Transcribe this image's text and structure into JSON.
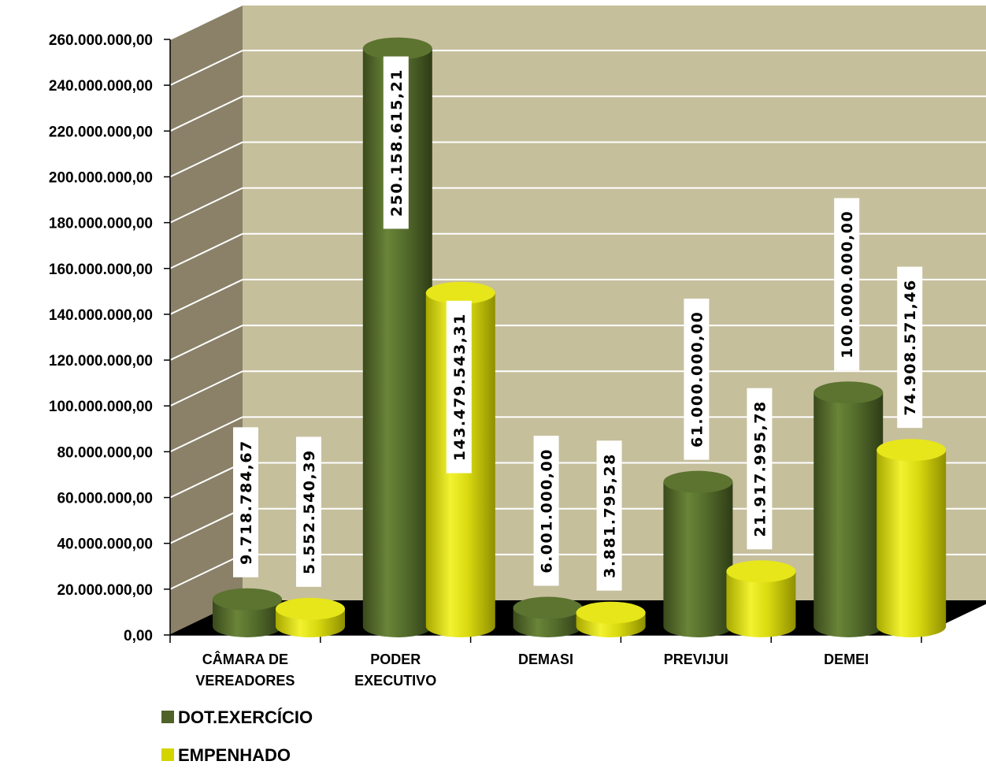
{
  "chart_data": {
    "type": "bar",
    "categories": [
      [
        "CÂMARA DE",
        "VEREADORES"
      ],
      [
        "PODER",
        "EXECUTIVO"
      ],
      [
        "DEMASI"
      ],
      [
        "PREVIJUI"
      ],
      [
        "DEMEI"
      ]
    ],
    "series": [
      {
        "name": "DOT.EXERCÍCIO",
        "color": "#4f6228",
        "values": [
          9718784.67,
          250158615.21,
          6001000.0,
          61000000.0,
          100000000.0
        ],
        "labels": [
          "9.718.784,67",
          "250.158.615,21",
          "6.001.000,00",
          "61.000.000,00",
          "100.000.000,00"
        ]
      },
      {
        "name": "EMPENHADO",
        "color": "#d4d400",
        "values": [
          5552540.39,
          143479543.31,
          3881795.28,
          21917995.78,
          74908571.46
        ],
        "labels": [
          "5.552.540,39",
          "143.479.543,31",
          "3.881.795,28",
          "21.917.995,78",
          "74.908.571,46"
        ]
      }
    ],
    "yticks": [
      "0,00",
      "20.000.000,00",
      "40.000.000,00",
      "60.000.000,00",
      "80.000.000,00",
      "100.000.000,00",
      "120.000.000,00",
      "140.000.000,00",
      "160.000.000,00",
      "180.000.000,00",
      "200.000.000,00",
      "220.000.000,00",
      "240.000.000,00",
      "260.000.000,00"
    ],
    "ylim": [
      0,
      260000000
    ],
    "grid": true,
    "legend_position": "bottom-left",
    "style": "3d-cylinder"
  }
}
